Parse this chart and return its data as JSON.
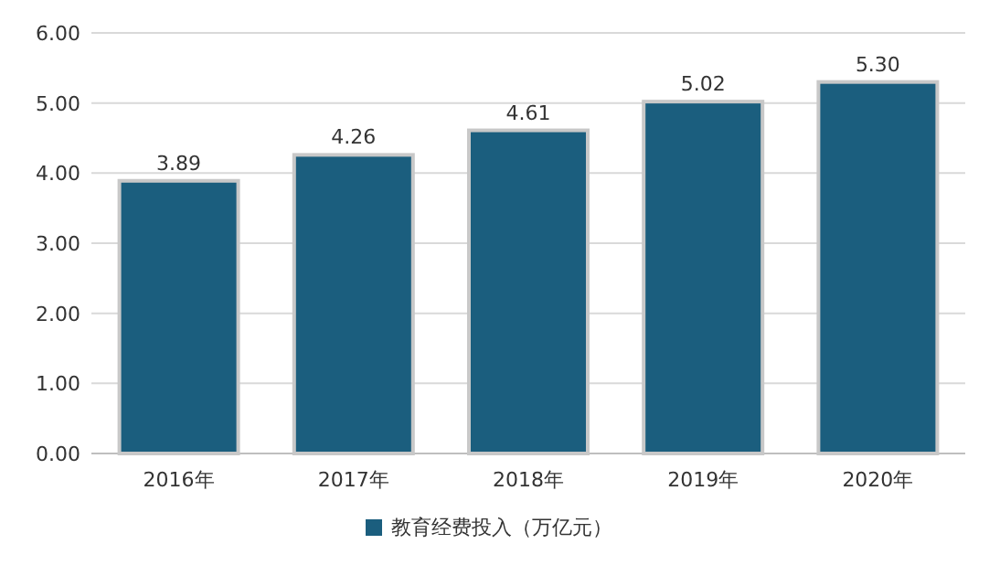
{
  "chart_data": {
    "type": "bar",
    "categories": [
      "2016年",
      "2017年",
      "2018年",
      "2019年",
      "2020年"
    ],
    "series": [
      {
        "name": "教育经费投入（万亿元）",
        "color": "#1b5e7e",
        "values": [
          3.89,
          4.26,
          4.61,
          5.02,
          5.3
        ],
        "value_labels": [
          "3.89",
          "4.26",
          "4.61",
          "5.02",
          "5.30"
        ]
      }
    ],
    "ylim": [
      0,
      6
    ],
    "yticks": [
      {
        "value": 0,
        "label": "0.00"
      },
      {
        "value": 1,
        "label": "1.00"
      },
      {
        "value": 2,
        "label": "2.00"
      },
      {
        "value": 3,
        "label": "3.00"
      },
      {
        "value": 4,
        "label": "4.00"
      },
      {
        "value": 5,
        "label": "5.00"
      },
      {
        "value": 6,
        "label": "6.00"
      }
    ],
    "grid": "y",
    "legend": "bottom"
  }
}
